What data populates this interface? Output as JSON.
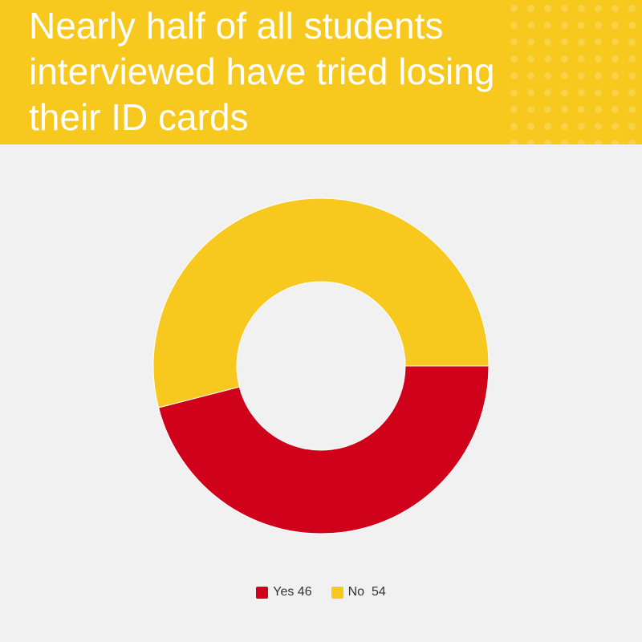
{
  "header": {
    "title": "Nearly half of all students interviewed have tried losing their ID cards"
  },
  "colors": {
    "header_bg": "#f7c81e",
    "yes": "#d0021b",
    "no": "#f7c81e",
    "background": "#f2f1f1"
  },
  "chart_data": {
    "type": "pie",
    "donut": true,
    "title": "Nearly half of all students interviewed have tried losing their ID cards",
    "categories": [
      "Yes",
      "No"
    ],
    "values": [
      46,
      54
    ],
    "legend_position": "bottom",
    "legend_labels": [
      "Yes 46",
      "No  54"
    ]
  }
}
